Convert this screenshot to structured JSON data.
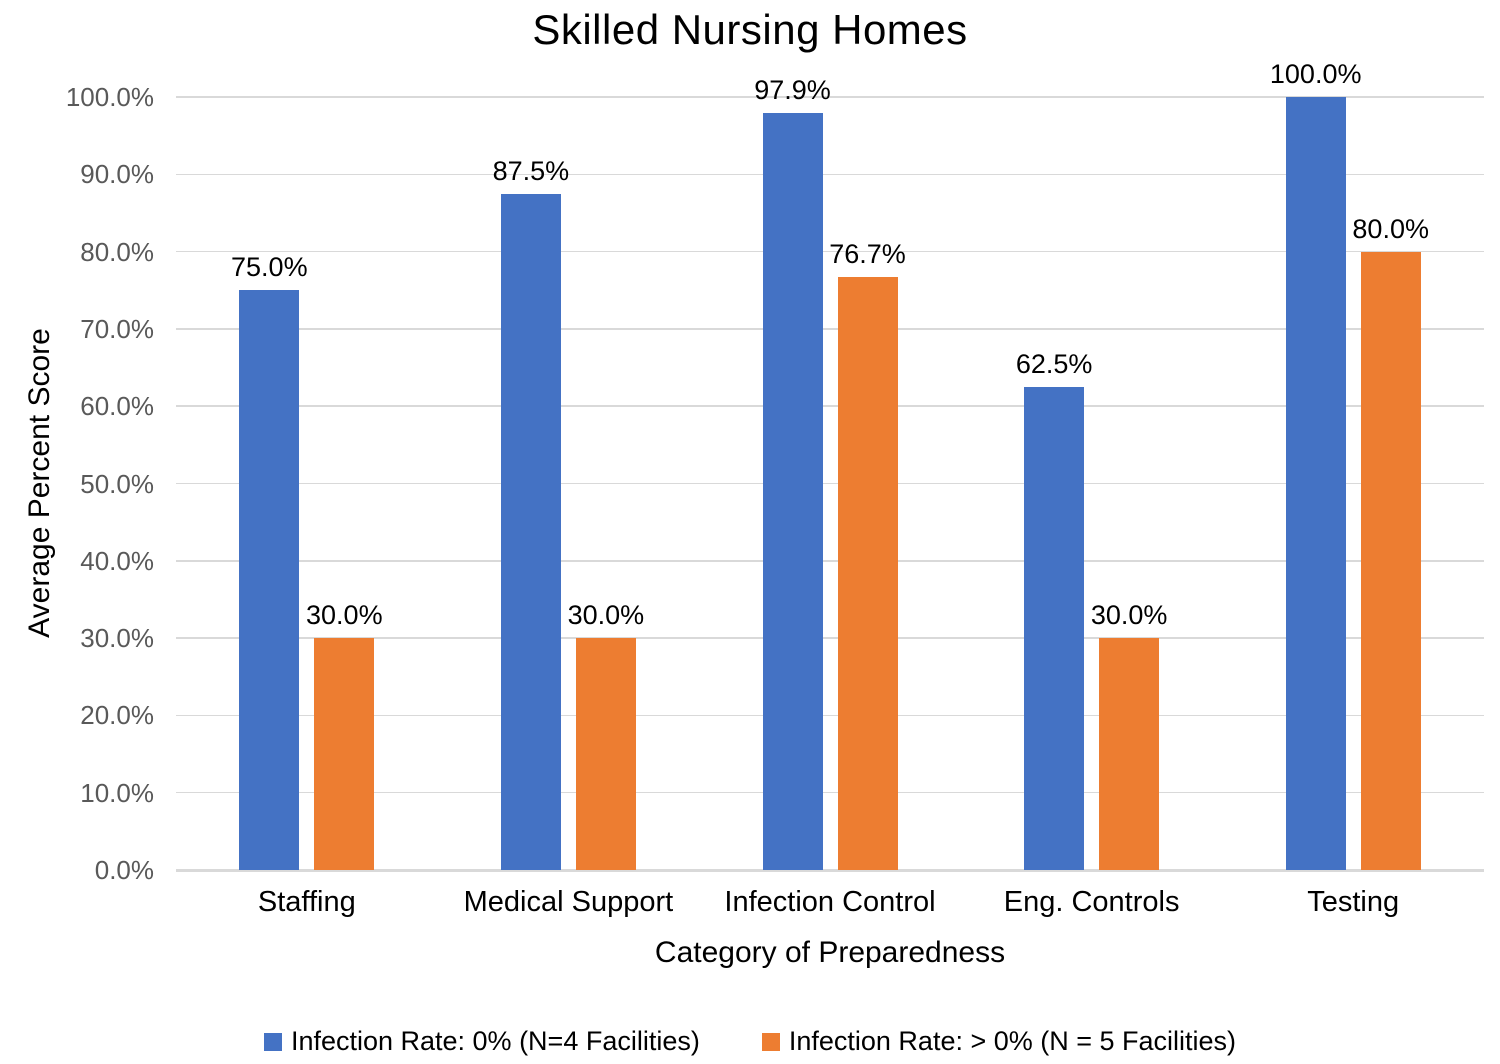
{
  "chart_data": {
    "type": "bar",
    "title": "Skilled Nursing Homes",
    "xlabel": "Category of Preparedness",
    "ylabel": "Average Percent Score",
    "categories": [
      "Staffing",
      "Medical Support",
      "Infection Control",
      "Eng. Controls",
      "Testing"
    ],
    "series": [
      {
        "name": "Infection Rate: 0% (N=4 Facilities)",
        "color": "#4472C4",
        "values": [
          75.0,
          87.5,
          97.9,
          62.5,
          100.0
        ],
        "labels": [
          "75.0%",
          "87.5%",
          "97.9%",
          "62.5%",
          "100.0%"
        ]
      },
      {
        "name": "Infection Rate: > 0% (N = 5 Facilities)",
        "color": "#ED7D31",
        "values": [
          30.0,
          30.0,
          76.7,
          30.0,
          80.0
        ],
        "labels": [
          "30.0%",
          "30.0%",
          "76.7%",
          "30.0%",
          "80.0%"
        ]
      }
    ],
    "ylim": [
      0,
      100
    ],
    "ytick_labels": [
      "0.0%",
      "10.0%",
      "20.0%",
      "30.0%",
      "40.0%",
      "50.0%",
      "60.0%",
      "70.0%",
      "80.0%",
      "90.0%",
      "100.0%"
    ],
    "grid": true,
    "legend_position": "bottom",
    "colors": {
      "gridline": "#D9D9D9",
      "axis_line": "#D9D9D9",
      "tick_label": "#595959",
      "text": "#000000"
    }
  }
}
